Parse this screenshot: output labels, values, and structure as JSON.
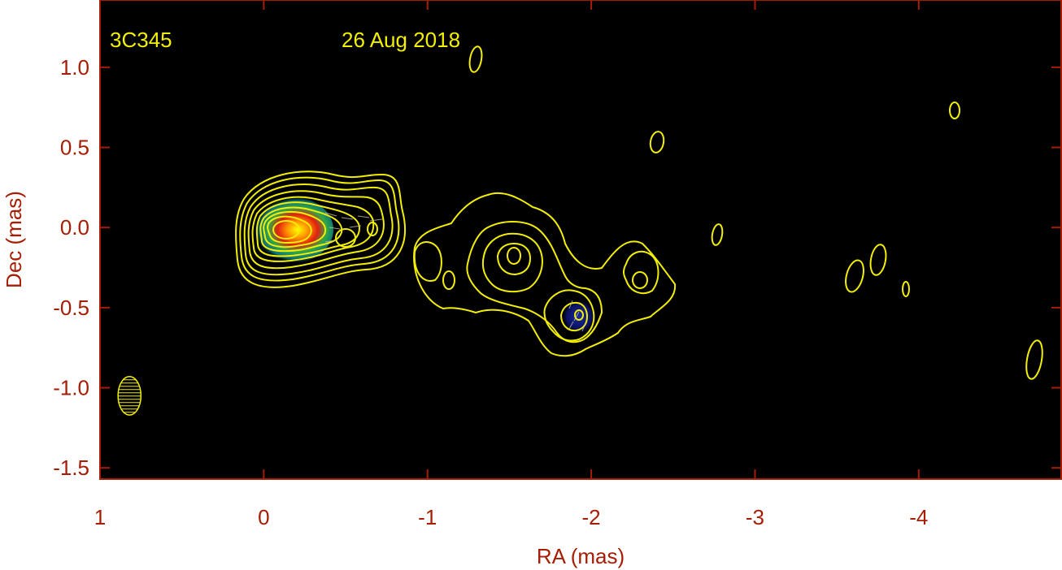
{
  "chart_data": {
    "type": "contour",
    "source": "3C345",
    "date": "26 Aug 2018",
    "xlabel": "RA (mas)",
    "ylabel": "Dec (mas)",
    "xlim": [
      1.0,
      -4.87
    ],
    "ylim": [
      -1.57,
      1.42
    ],
    "x_ticks": [
      1,
      0,
      -1,
      -2,
      -3,
      -4
    ],
    "x_tick_labels": [
      "1",
      "0",
      "-1",
      "-2",
      "-3",
      "-4"
    ],
    "y_ticks": [
      1.0,
      0.5,
      0.0,
      -0.5,
      -1.0,
      -1.5
    ],
    "y_tick_labels": [
      "1.0",
      "0.5",
      "0.0",
      "-0.5",
      "-1.0",
      "-1.5"
    ],
    "core": {
      "ra": -0.1,
      "dec": 0.0
    },
    "beam": {
      "ra": 0.82,
      "dec": -1.05,
      "major": 0.24,
      "minor": 0.14,
      "pa_deg": 0
    },
    "colors": {
      "frame": "#a51d04",
      "background": "#000000",
      "contour": "#f2ee05",
      "label": "#f2ee05"
    }
  }
}
